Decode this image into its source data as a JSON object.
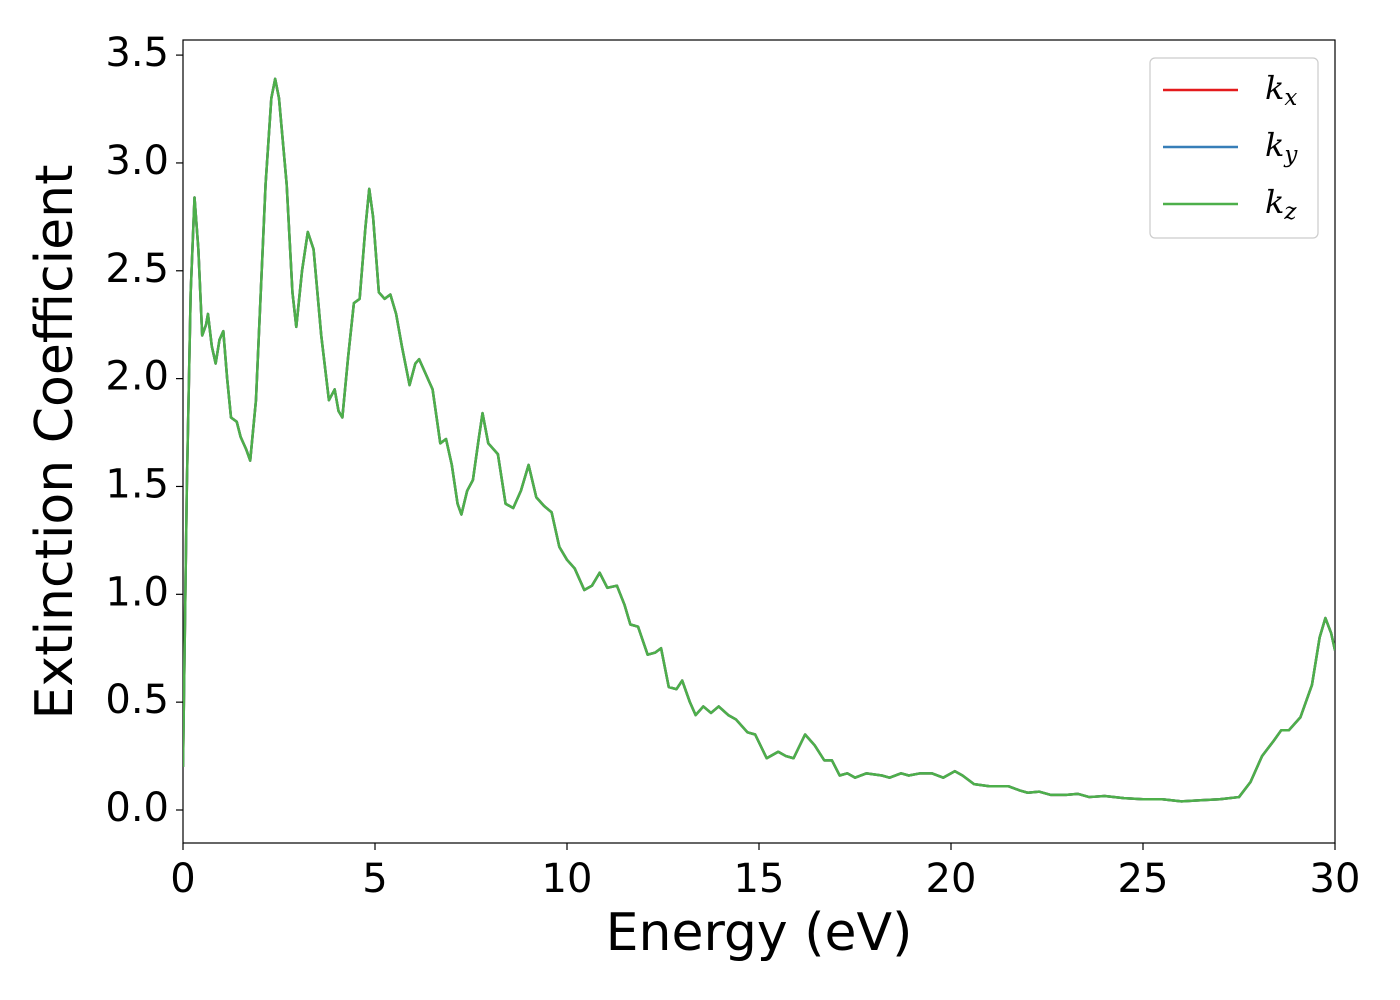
{
  "chart_data": {
    "type": "line",
    "xlabel": "Energy (eV)",
    "ylabel": "Extinction Coefficient",
    "x": [
      0,
      0.1,
      0.2,
      0.3,
      0.4,
      0.5,
      0.6,
      0.65,
      0.75,
      0.85,
      0.95,
      1.05,
      1.15,
      1.25,
      1.4,
      1.5,
      1.65,
      1.75,
      1.9,
      2.0,
      2.15,
      2.3,
      2.4,
      2.5,
      2.7,
      2.85,
      2.95,
      3.1,
      3.25,
      3.4,
      3.6,
      3.8,
      3.95,
      4.05,
      4.15,
      4.3,
      4.45,
      4.6,
      4.75,
      4.85,
      4.95,
      5.1,
      5.25,
      5.4,
      5.55,
      5.7,
      5.9,
      6.05,
      6.15,
      6.3,
      6.5,
      6.7,
      6.85,
      7.0,
      7.15,
      7.25,
      7.4,
      7.55,
      7.7,
      7.8,
      7.95,
      8.1,
      8.2,
      8.4,
      8.6,
      8.8,
      9.0,
      9.2,
      9.4,
      9.6,
      9.8,
      10.0,
      10.2,
      10.45,
      10.65,
      10.85,
      11.05,
      11.3,
      11.5,
      11.65,
      11.85,
      12.1,
      12.3,
      12.45,
      12.65,
      12.85,
      13.0,
      13.2,
      13.35,
      13.55,
      13.75,
      13.95,
      14.2,
      14.4,
      14.7,
      14.9,
      15.2,
      15.5,
      15.7,
      15.9,
      16.2,
      16.45,
      16.7,
      16.9,
      17.1,
      17.3,
      17.5,
      17.8,
      18.2,
      18.4,
      18.7,
      18.9,
      19.2,
      19.5,
      19.8,
      20.1,
      20.3,
      20.6,
      21,
      21.5,
      21.8,
      22.0,
      22.3,
      22.6,
      23.0,
      23.3,
      23.6,
      24,
      24.5,
      25,
      25.5,
      26,
      26.5,
      27,
      27.5,
      27.8,
      28.1,
      28.4,
      28.6,
      28.8,
      29.1,
      29.4,
      29.6,
      29.75,
      29.9,
      30.0
    ],
    "series": [
      {
        "name": "kx",
        "color": "#e41a1c",
        "values": [
          0.2,
          1.5,
          2.4,
          2.84,
          2.6,
          2.2,
          2.25,
          2.3,
          2.15,
          2.07,
          2.18,
          2.22,
          2.0,
          1.82,
          1.8,
          1.73,
          1.67,
          1.62,
          1.9,
          2.3,
          2.9,
          3.3,
          3.39,
          3.3,
          2.9,
          2.4,
          2.24,
          2.5,
          2.68,
          2.6,
          2.2,
          1.9,
          1.95,
          1.85,
          1.82,
          2.1,
          2.35,
          2.37,
          2.7,
          2.88,
          2.75,
          2.4,
          2.37,
          2.39,
          2.3,
          2.15,
          1.97,
          2.07,
          2.09,
          2.03,
          1.95,
          1.7,
          1.72,
          1.6,
          1.42,
          1.37,
          1.48,
          1.53,
          1.72,
          1.84,
          1.7,
          1.67,
          1.65,
          1.42,
          1.4,
          1.48,
          1.6,
          1.45,
          1.41,
          1.38,
          1.22,
          1.16,
          1.12,
          1.02,
          1.04,
          1.1,
          1.03,
          1.04,
          0.95,
          0.86,
          0.85,
          0.72,
          0.73,
          0.75,
          0.57,
          0.56,
          0.6,
          0.5,
          0.44,
          0.48,
          0.45,
          0.48,
          0.44,
          0.42,
          0.36,
          0.35,
          0.24,
          0.27,
          0.25,
          0.24,
          0.35,
          0.3,
          0.23,
          0.23,
          0.16,
          0.17,
          0.15,
          0.17,
          0.16,
          0.15,
          0.17,
          0.16,
          0.17,
          0.17,
          0.15,
          0.18,
          0.16,
          0.12,
          0.11,
          0.11,
          0.09,
          0.08,
          0.085,
          0.07,
          0.07,
          0.075,
          0.06,
          0.065,
          0.055,
          0.05,
          0.05,
          0.04,
          0.045,
          0.05,
          0.06,
          0.13,
          0.25,
          0.32,
          0.37,
          0.37,
          0.43,
          0.58,
          0.8,
          0.89,
          0.82,
          0.74
        ]
      },
      {
        "name": "ky",
        "color": "#377eb8",
        "values": [
          0.2,
          1.5,
          2.4,
          2.84,
          2.6,
          2.2,
          2.25,
          2.3,
          2.15,
          2.07,
          2.18,
          2.22,
          2.0,
          1.82,
          1.8,
          1.73,
          1.67,
          1.62,
          1.9,
          2.3,
          2.9,
          3.3,
          3.39,
          3.3,
          2.9,
          2.4,
          2.24,
          2.5,
          2.68,
          2.6,
          2.2,
          1.9,
          1.95,
          1.85,
          1.82,
          2.1,
          2.35,
          2.37,
          2.7,
          2.88,
          2.75,
          2.4,
          2.37,
          2.39,
          2.3,
          2.15,
          1.97,
          2.07,
          2.09,
          2.03,
          1.95,
          1.7,
          1.72,
          1.6,
          1.42,
          1.37,
          1.48,
          1.53,
          1.72,
          1.84,
          1.7,
          1.67,
          1.65,
          1.42,
          1.4,
          1.48,
          1.6,
          1.45,
          1.41,
          1.38,
          1.22,
          1.16,
          1.12,
          1.02,
          1.04,
          1.1,
          1.03,
          1.04,
          0.95,
          0.86,
          0.85,
          0.72,
          0.73,
          0.75,
          0.57,
          0.56,
          0.6,
          0.5,
          0.44,
          0.48,
          0.45,
          0.48,
          0.44,
          0.42,
          0.36,
          0.35,
          0.24,
          0.27,
          0.25,
          0.24,
          0.35,
          0.3,
          0.23,
          0.23,
          0.16,
          0.17,
          0.15,
          0.17,
          0.16,
          0.15,
          0.17,
          0.16,
          0.17,
          0.17,
          0.15,
          0.18,
          0.16,
          0.12,
          0.11,
          0.11,
          0.09,
          0.08,
          0.085,
          0.07,
          0.07,
          0.075,
          0.06,
          0.065,
          0.055,
          0.05,
          0.05,
          0.04,
          0.045,
          0.05,
          0.06,
          0.13,
          0.25,
          0.32,
          0.37,
          0.37,
          0.43,
          0.58,
          0.8,
          0.89,
          0.82,
          0.74
        ]
      },
      {
        "name": "kz",
        "color": "#4daf4a",
        "values": [
          0.2,
          1.5,
          2.4,
          2.84,
          2.6,
          2.2,
          2.25,
          2.3,
          2.15,
          2.07,
          2.18,
          2.22,
          2.0,
          1.82,
          1.8,
          1.73,
          1.67,
          1.62,
          1.9,
          2.3,
          2.9,
          3.3,
          3.39,
          3.3,
          2.9,
          2.4,
          2.24,
          2.5,
          2.68,
          2.6,
          2.2,
          1.9,
          1.95,
          1.85,
          1.82,
          2.1,
          2.35,
          2.37,
          2.7,
          2.88,
          2.75,
          2.4,
          2.37,
          2.39,
          2.3,
          2.15,
          1.97,
          2.07,
          2.09,
          2.03,
          1.95,
          1.7,
          1.72,
          1.6,
          1.42,
          1.37,
          1.48,
          1.53,
          1.72,
          1.84,
          1.7,
          1.67,
          1.65,
          1.42,
          1.4,
          1.48,
          1.6,
          1.45,
          1.41,
          1.38,
          1.22,
          1.16,
          1.12,
          1.02,
          1.04,
          1.1,
          1.03,
          1.04,
          0.95,
          0.86,
          0.85,
          0.72,
          0.73,
          0.75,
          0.57,
          0.56,
          0.6,
          0.5,
          0.44,
          0.48,
          0.45,
          0.48,
          0.44,
          0.42,
          0.36,
          0.35,
          0.24,
          0.27,
          0.25,
          0.24,
          0.35,
          0.3,
          0.23,
          0.23,
          0.16,
          0.17,
          0.15,
          0.17,
          0.16,
          0.15,
          0.17,
          0.16,
          0.17,
          0.17,
          0.15,
          0.18,
          0.16,
          0.12,
          0.11,
          0.11,
          0.09,
          0.08,
          0.085,
          0.07,
          0.07,
          0.075,
          0.06,
          0.065,
          0.055,
          0.05,
          0.05,
          0.04,
          0.045,
          0.05,
          0.06,
          0.13,
          0.25,
          0.32,
          0.37,
          0.37,
          0.43,
          0.58,
          0.8,
          0.89,
          0.82,
          0.74
        ]
      }
    ],
    "xlim": [
      0,
      30
    ],
    "xticks": [
      0,
      5,
      10,
      15,
      20,
      25,
      30
    ],
    "ylim": [
      -0.153,
      3.57
    ],
    "yticks": [
      {
        "value": 0,
        "label": "0.0"
      },
      0.5,
      {
        "value": 1,
        "label": "1.0"
      },
      1.5,
      {
        "value": 2,
        "label": "2.0"
      },
      2.5,
      {
        "value": 3,
        "label": "3.0"
      },
      3.5
    ],
    "legend": "upper right",
    "grid": false
  }
}
